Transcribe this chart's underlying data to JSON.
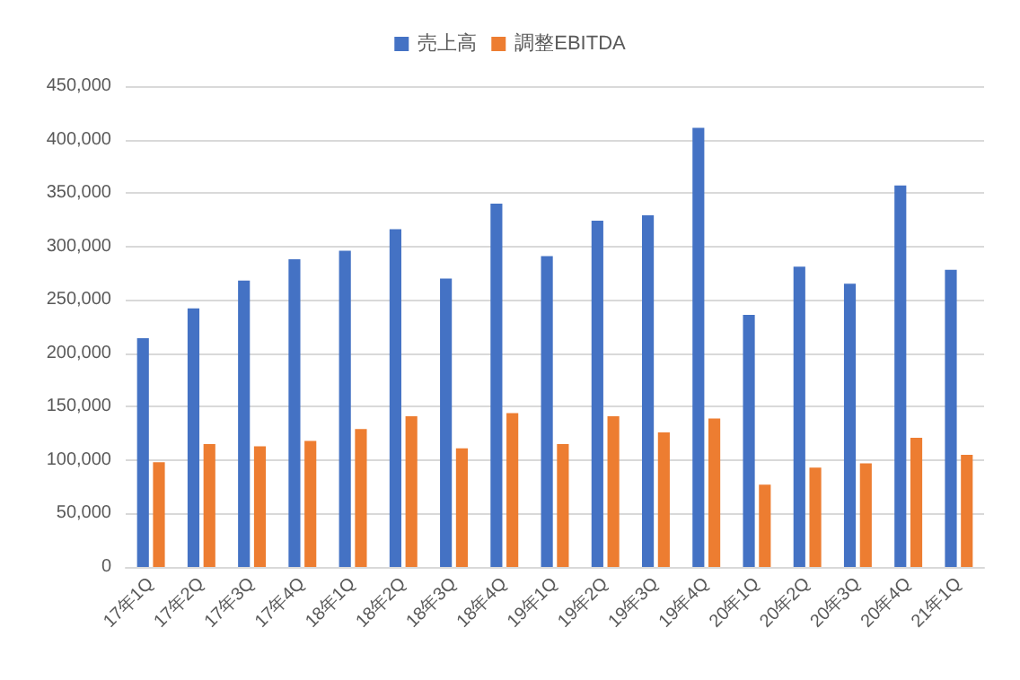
{
  "chart_data": {
    "type": "bar",
    "categories": [
      "17年1Q",
      "17年2Q",
      "17年3Q",
      "17年4Q",
      "18年1Q",
      "18年2Q",
      "18年3Q",
      "18年4Q",
      "19年1Q",
      "19年2Q",
      "19年3Q",
      "19年4Q",
      "20年1Q",
      "20年2Q",
      "20年3Q",
      "20年4Q",
      "21年1Q"
    ],
    "series": [
      {
        "name": "売上高",
        "color": "#4472c4",
        "values": [
          214000,
          242000,
          268000,
          288000,
          296000,
          316000,
          270000,
          340000,
          291000,
          324000,
          329000,
          411000,
          236000,
          281000,
          265000,
          357000,
          278000
        ]
      },
      {
        "name": "調整EBITDA",
        "color": "#ed7d31",
        "values": [
          98000,
          115000,
          113000,
          118000,
          129000,
          141000,
          111000,
          144000,
          115000,
          141000,
          126000,
          139000,
          77000,
          93000,
          97000,
          121000,
          105000
        ]
      }
    ],
    "ylim": [
      0,
      450000
    ],
    "yticks": [
      0,
      {
        "value": 50000,
        "label": "50,000"
      },
      {
        "value": 100000,
        "label": "100,000"
      },
      {
        "value": 150000,
        "label": "150,000"
      },
      {
        "value": 200000,
        "label": "200,000"
      },
      {
        "value": 250000,
        "label": "250,000"
      },
      {
        "value": 300000,
        "label": "300,000"
      },
      {
        "value": 350000,
        "label": "350,000"
      },
      {
        "value": 400000,
        "label": "400,000"
      },
      {
        "value": 450000,
        "label": "450,000"
      }
    ],
    "grid": "y",
    "legend": "top"
  }
}
